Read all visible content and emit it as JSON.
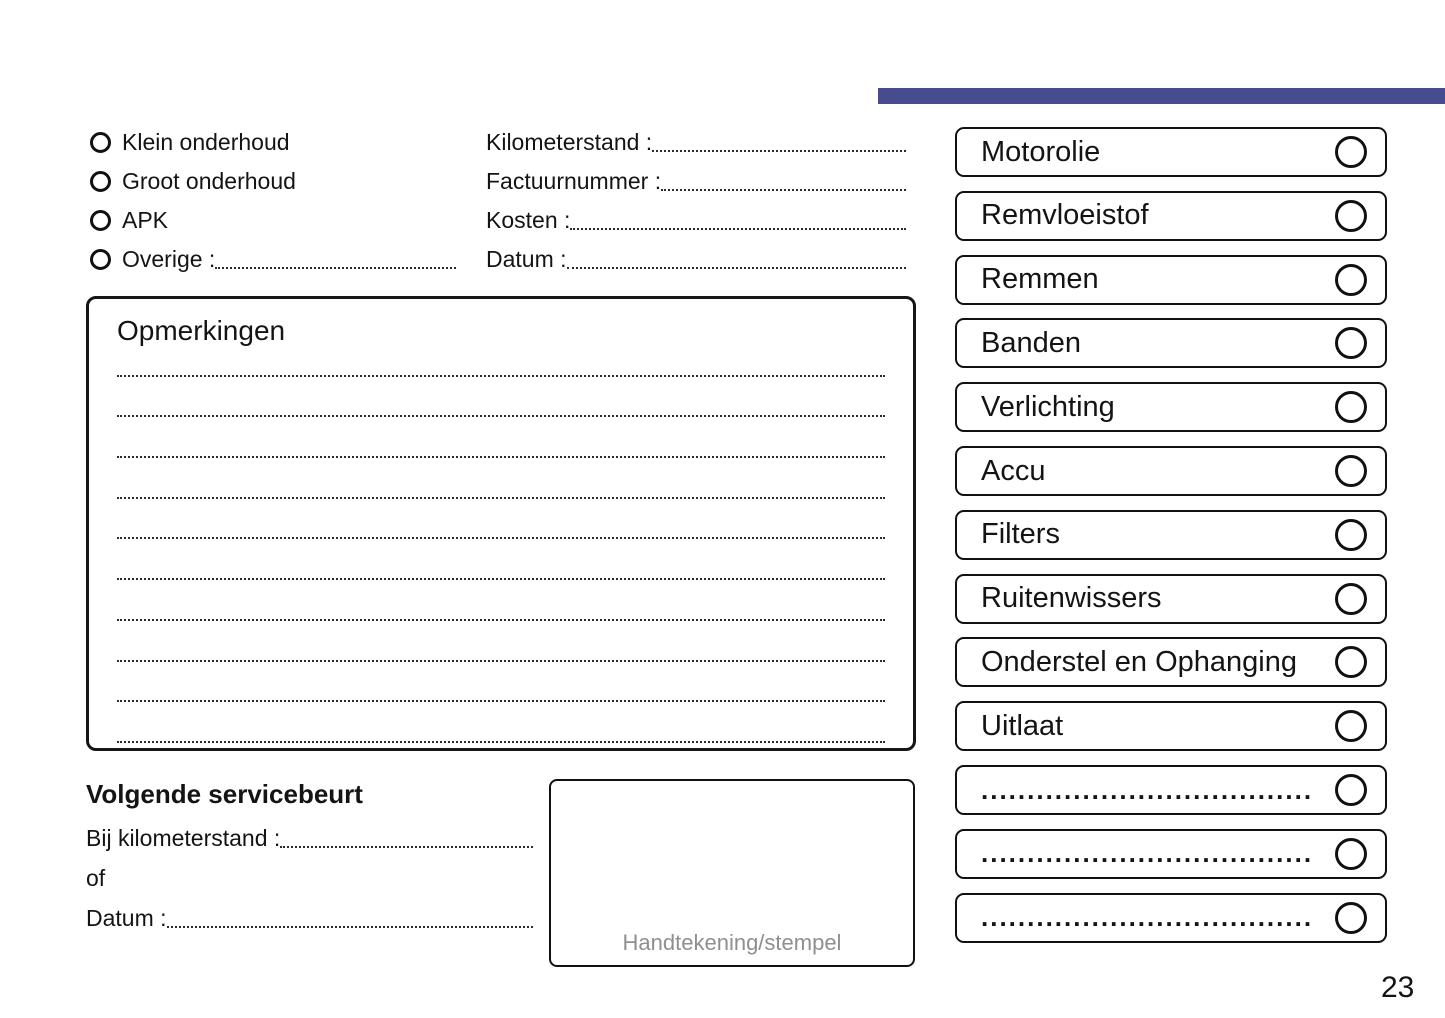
{
  "page": {
    "number": "23"
  },
  "theme": {
    "accent_bar_color": "#474C8F",
    "muted_text_color": "#8f8f8f"
  },
  "service_type": {
    "options": [
      {
        "label": "Klein onderhoud",
        "has_line": false
      },
      {
        "label": "Groot onderhoud",
        "has_line": false
      },
      {
        "label": "APK",
        "has_line": false
      },
      {
        "label": "Overige :",
        "has_line": true
      }
    ]
  },
  "service_fields": [
    {
      "label": "Kilometerstand :"
    },
    {
      "label": "Factuurnummer :"
    },
    {
      "label": "Kosten :"
    },
    {
      "label": "Datum :"
    }
  ],
  "notes": {
    "title": "Opmerkingen",
    "line_count": 10
  },
  "next_service": {
    "title": "Volgende servicebeurt",
    "rows": [
      {
        "label": "Bij kilometerstand :",
        "has_line": true
      },
      {
        "label": "of",
        "has_line": false
      },
      {
        "label": "Datum :",
        "has_line": true
      }
    ]
  },
  "signature_box": {
    "caption": "Handtekening/stempel"
  },
  "checklist": {
    "items": [
      {
        "label": "Motorolie",
        "blank": false
      },
      {
        "label": "Remvloeistof",
        "blank": false
      },
      {
        "label": "Remmen",
        "blank": false
      },
      {
        "label": "Banden",
        "blank": false
      },
      {
        "label": "Verlichting",
        "blank": false
      },
      {
        "label": "Accu",
        "blank": false
      },
      {
        "label": "Filters",
        "blank": false
      },
      {
        "label": "Ruitenwissers",
        "blank": false
      },
      {
        "label": "Onderstel en Ophanging",
        "blank": false
      },
      {
        "label": "Uitlaat",
        "blank": false
      },
      {
        "label": "....................................",
        "blank": true
      },
      {
        "label": "....................................",
        "blank": true
      },
      {
        "label": "....................................",
        "blank": true
      }
    ]
  }
}
